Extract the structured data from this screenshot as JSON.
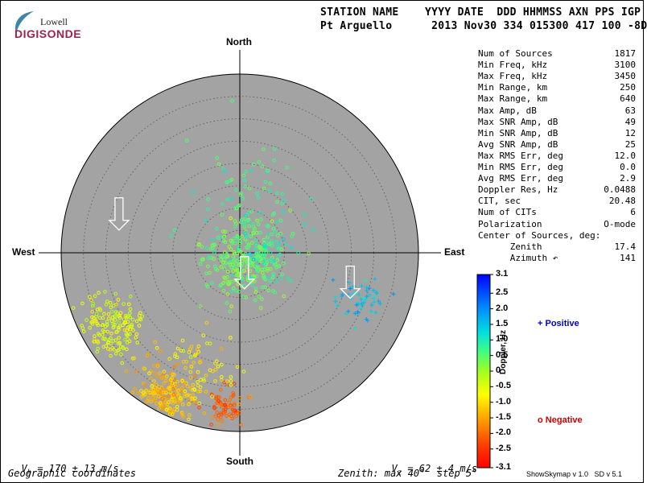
{
  "logo": {
    "line1": "Lowell",
    "line2": "DIGISONDE"
  },
  "header": {
    "row1": "STATION NAME    YYYY DATE  DDD HHMMSS AXN PPS IGP",
    "row2": "Pt Arguello      2013 Nov30 334 015300 417 100 -8D"
  },
  "compass": {
    "north": "North",
    "south": "South",
    "east": "East",
    "west": "West"
  },
  "stats": [
    {
      "label": "Num of Sources",
      "value": "1817"
    },
    {
      "label": "Min Freq, kHz",
      "value": "3100"
    },
    {
      "label": "Max Freq, kHz",
      "value": "3450"
    },
    {
      "label": "Min Range, km",
      "value": "250"
    },
    {
      "label": "Max Range, km",
      "value": "640"
    },
    {
      "label": "Max Amp, dB",
      "value": "63"
    },
    {
      "label": "Max SNR Amp, dB",
      "value": "49"
    },
    {
      "label": "Min SNR Amp, dB",
      "value": "12"
    },
    {
      "label": "Avg SNR Amp, dB",
      "value": "25"
    },
    {
      "label": "Max RMS Err, deg",
      "value": "12.0"
    },
    {
      "label": "Min RMS Err, deg",
      "value": "0.0"
    },
    {
      "label": "Avg RMS Err, deg",
      "value": "2.9"
    },
    {
      "label": "Doppler Res, Hz",
      "value": "0.0488"
    },
    {
      "label": "CIT, sec",
      "value": "20.48"
    },
    {
      "label": "Num of CITs",
      "value": "6"
    },
    {
      "label": "Polarization",
      "value": "O-mode"
    },
    {
      "label": "Center of Sources, deg:",
      "value": ""
    },
    {
      "label": "      Zenith",
      "value": "17.4"
    },
    {
      "label": "      Azimuth ↶",
      "value": "141"
    }
  ],
  "colorbar": {
    "label": "Doppler, Hz",
    "ticks": [
      "3.1",
      "2.5",
      "2.0",
      "1.5",
      "1.0",
      "0.5",
      "0",
      "-0.5",
      "-1.0",
      "-1.5",
      "-2.0",
      "-2.5",
      "-3.1"
    ]
  },
  "legend": {
    "positive": "Positive",
    "negative": "Negative",
    "positive_color": "#0000cc",
    "negative_color": "#cc0000"
  },
  "bottom": {
    "vh_sym": "V",
    "vh_sub": "h",
    "vh_text": " = 170 ± 13 m/s",
    "vz_sym": "V",
    "vz_sub": "z",
    "vz_text": " = 62 ± 4 m/s",
    "coords": "Geographic coordinates",
    "zenith": "Zenith: max 40°  step 5°",
    "version": "ShowSkymap v 1.0   SD v 5.1"
  },
  "chart_data": {
    "type": "scatter",
    "plot": "skymap polar projection",
    "zenith_max_deg": 40,
    "zenith_step_deg": 5,
    "color_scale": {
      "min": -3.1,
      "max": 3.1,
      "unit": "Hz"
    },
    "clusters": [
      {
        "zenith_deg": 2,
        "azimuth_deg": 160,
        "count": 260,
        "spread_deg": 4.5,
        "doppler": 0.4,
        "marker": "o"
      },
      {
        "zenith_deg": 10,
        "azimuth_deg": 10,
        "count": 90,
        "spread_deg": 6,
        "doppler": 0.8,
        "marker": "o"
      },
      {
        "zenith_deg": 5,
        "azimuth_deg": 95,
        "count": 70,
        "spread_deg": 4,
        "doppler": 0.9,
        "marker": "o"
      },
      {
        "zenith_deg": 33,
        "azimuth_deg": 240,
        "count": 170,
        "spread_deg": 3.5,
        "doppler": -0.5,
        "marker": "o"
      },
      {
        "zenith_deg": 36,
        "azimuth_deg": 207,
        "count": 240,
        "spread_deg": 3.2,
        "doppler": -1.3,
        "marker": "o"
      },
      {
        "zenith_deg": 35,
        "azimuth_deg": 186,
        "count": 80,
        "spread_deg": 2.2,
        "doppler": -2.1,
        "marker": "o"
      },
      {
        "zenith_deg": 28,
        "azimuth_deg": 200,
        "count": 70,
        "spread_deg": 4,
        "doppler": -0.8,
        "marker": "o"
      },
      {
        "zenith_deg": 29,
        "azimuth_deg": 110,
        "count": 55,
        "spread_deg": 2.5,
        "doppler": 1.5,
        "marker": "+"
      }
    ],
    "arrows": [
      {
        "zenith_deg": 28,
        "azimuth_deg": 285
      },
      {
        "zenith_deg": 6,
        "azimuth_deg": 170
      },
      {
        "zenith_deg": 26,
        "azimuth_deg": 108
      }
    ]
  }
}
